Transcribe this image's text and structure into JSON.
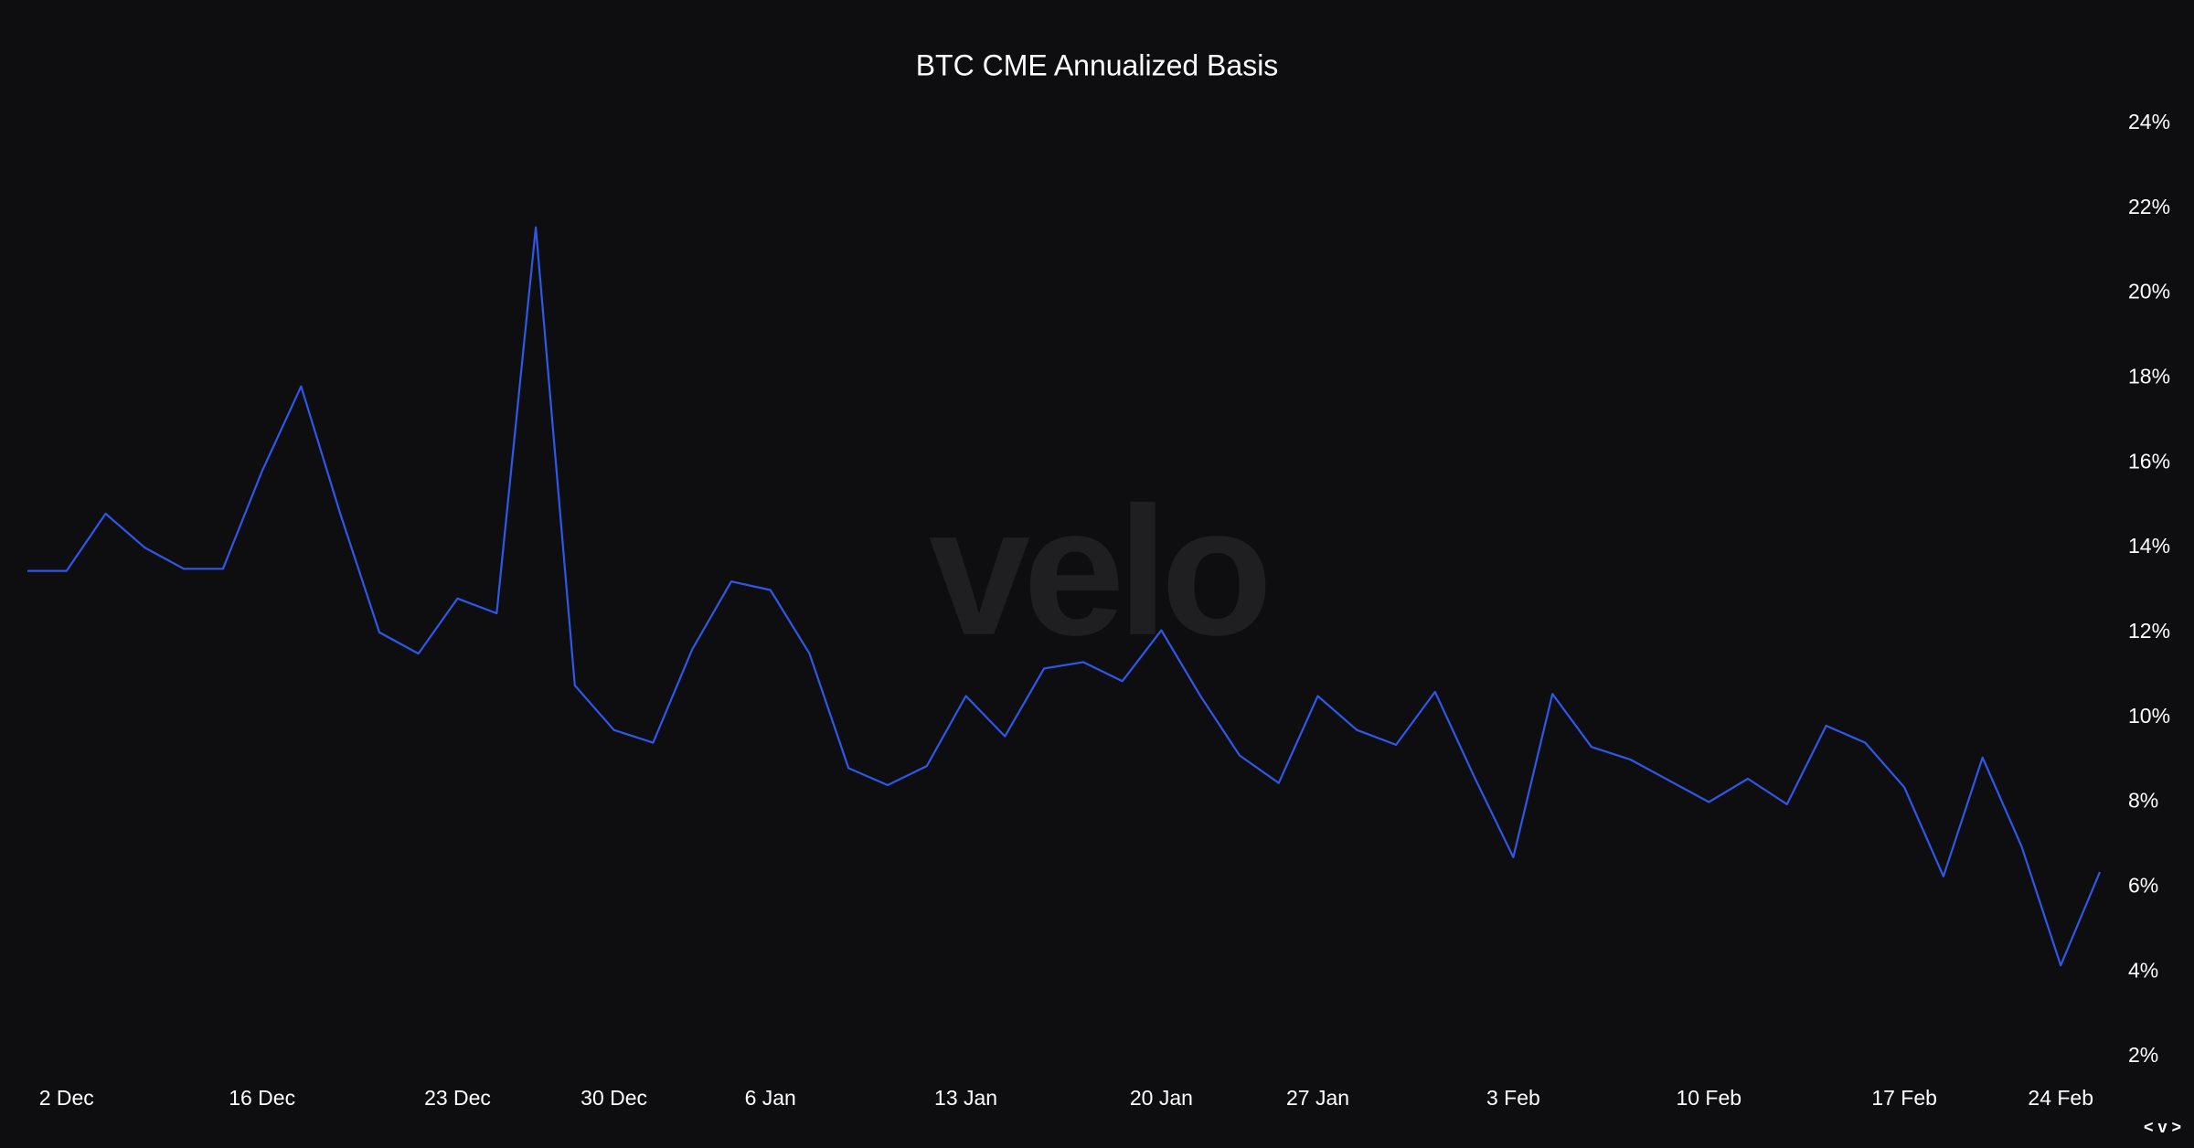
{
  "chart_data": {
    "type": "line",
    "title": "BTC CME Annualized Basis",
    "watermark": "velo",
    "nav_label": "< v >",
    "categories": [
      null,
      "2 Dec",
      null,
      null,
      null,
      null,
      "16 Dec",
      null,
      null,
      null,
      null,
      "23 Dec",
      null,
      null,
      null,
      "30 Dec",
      null,
      null,
      null,
      "6 Jan",
      null,
      null,
      null,
      null,
      "13 Jan",
      null,
      null,
      null,
      null,
      "20 Jan",
      null,
      null,
      null,
      "27 Jan",
      null,
      null,
      null,
      null,
      "3 Feb",
      null,
      null,
      null,
      null,
      "10 Feb",
      null,
      null,
      null,
      null,
      "17 Feb",
      null,
      null,
      null,
      "24 Feb",
      null
    ],
    "series": [
      {
        "color": "#2f57e8",
        "values": [
          13.45,
          13.45,
          14.8,
          14.0,
          13.5,
          13.5,
          15.8,
          17.8,
          14.8,
          12.0,
          11.5,
          12.8,
          12.45,
          21.55,
          10.75,
          9.7,
          9.4,
          11.6,
          13.2,
          13.0,
          11.5,
          8.8,
          8.4,
          8.85,
          10.5,
          9.55,
          11.15,
          11.3,
          10.85,
          12.05,
          10.5,
          9.1,
          8.45,
          10.5,
          9.7,
          9.35,
          10.6,
          8.6,
          6.7,
          10.55,
          9.3,
          9.0,
          8.5,
          8.0,
          8.55,
          7.95,
          9.8,
          9.4,
          8.35,
          6.25,
          9.05,
          6.95,
          4.15,
          6.35
        ]
      }
    ],
    "ylim": [
      2,
      24
    ],
    "yticks": [
      {
        "value": 2,
        "label": "2%"
      },
      {
        "value": 4,
        "label": "4%"
      },
      {
        "value": 6,
        "label": "6%"
      },
      {
        "value": 8,
        "label": "8%"
      },
      {
        "value": 10,
        "label": "10%"
      },
      {
        "value": 12,
        "label": "12%"
      },
      {
        "value": 14,
        "label": "14%"
      },
      {
        "value": 16,
        "label": "16%"
      },
      {
        "value": 18,
        "label": "18%"
      },
      {
        "value": 20,
        "label": "20%"
      },
      {
        "value": 22,
        "label": "22%"
      },
      {
        "value": 24,
        "label": "24%"
      }
    ],
    "grid": false
  }
}
